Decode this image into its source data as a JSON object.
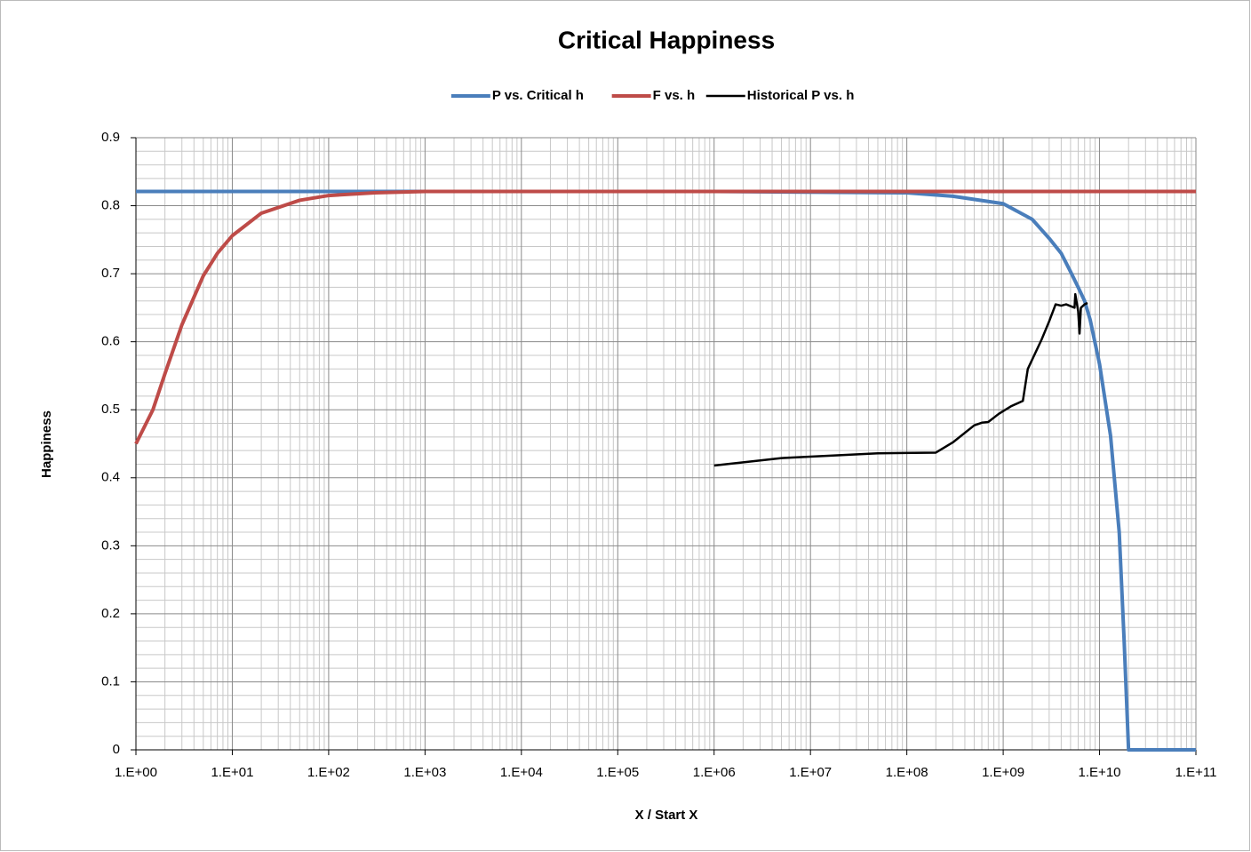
{
  "chart_data": {
    "type": "line",
    "title": "Critical Happiness",
    "x_label": "X / Start X",
    "y_label": "Happiness",
    "xscale": "log",
    "grid": true,
    "minor_grid": true,
    "legend": "top",
    "xlim": [
      1,
      100000000000
    ],
    "ylim": [
      0,
      0.9
    ],
    "xticks": [
      {
        "value": 1,
        "label": "1.E+00"
      },
      {
        "value": 10,
        "label": "1.E+01"
      },
      {
        "value": 100,
        "label": "1.E+02"
      },
      {
        "value": 1000,
        "label": "1.E+03"
      },
      {
        "value": 10000,
        "label": "1.E+04"
      },
      {
        "value": 100000,
        "label": "1.E+05"
      },
      {
        "value": 1000000,
        "label": "1.E+06"
      },
      {
        "value": 10000000,
        "label": "1.E+07"
      },
      {
        "value": 100000000,
        "label": "1.E+08"
      },
      {
        "value": 1000000000,
        "label": "1.E+09"
      },
      {
        "value": 10000000000,
        "label": "1.E+10"
      },
      {
        "value": 100000000000,
        "label": "1.E+11"
      }
    ],
    "yticks": [
      0,
      0.1,
      0.2,
      0.3,
      0.4,
      0.5,
      0.6,
      0.7,
      0.8,
      0.9
    ],
    "series": [
      {
        "name": "P vs. Critical h",
        "color": "#4a7ebb",
        "width": 4,
        "x": [
          1,
          1000000,
          100000000,
          300000000,
          1000000000,
          2000000000,
          3000000000,
          4000000000,
          5000000000,
          6000000000,
          7000000000,
          8000000000,
          10000000000,
          13000000000,
          16000000000,
          18000000000,
          20000000000,
          100000000000
        ],
        "values": [
          0.821,
          0.821,
          0.819,
          0.814,
          0.803,
          0.78,
          0.752,
          0.73,
          0.703,
          0.68,
          0.66,
          0.632,
          0.567,
          0.462,
          0.32,
          0.16,
          0,
          0
        ]
      },
      {
        "name": "F vs. h",
        "color": "#be4b48",
        "width": 4,
        "x": [
          1,
          1.5,
          2,
          3,
          5,
          7,
          10,
          20,
          50,
          100,
          300,
          1000,
          100000000000
        ],
        "values": [
          0.45,
          0.5,
          0.553,
          0.625,
          0.697,
          0.73,
          0.756,
          0.789,
          0.808,
          0.815,
          0.819,
          0.821,
          0.821
        ]
      },
      {
        "name": "Historical P vs. h",
        "color": "#000000",
        "width": 2.5,
        "x": [
          1000000,
          5000000,
          50000000,
          200000000,
          300000000,
          500000000,
          600000000,
          700000000,
          900000000,
          1200000000,
          1600000000,
          1800000000,
          2500000000,
          3000000000,
          3500000000,
          4000000000,
          4500000000,
          5500000000,
          5600000000,
          6000000000,
          6200000000,
          6400000000,
          7000000000,
          7500000000
        ],
        "values": [
          0.418,
          0.429,
          0.436,
          0.437,
          0.452,
          0.477,
          0.481,
          0.482,
          0.494,
          0.505,
          0.513,
          0.56,
          0.603,
          0.63,
          0.655,
          0.653,
          0.655,
          0.65,
          0.67,
          0.645,
          0.612,
          0.65,
          0.655,
          0.657
        ]
      }
    ]
  }
}
